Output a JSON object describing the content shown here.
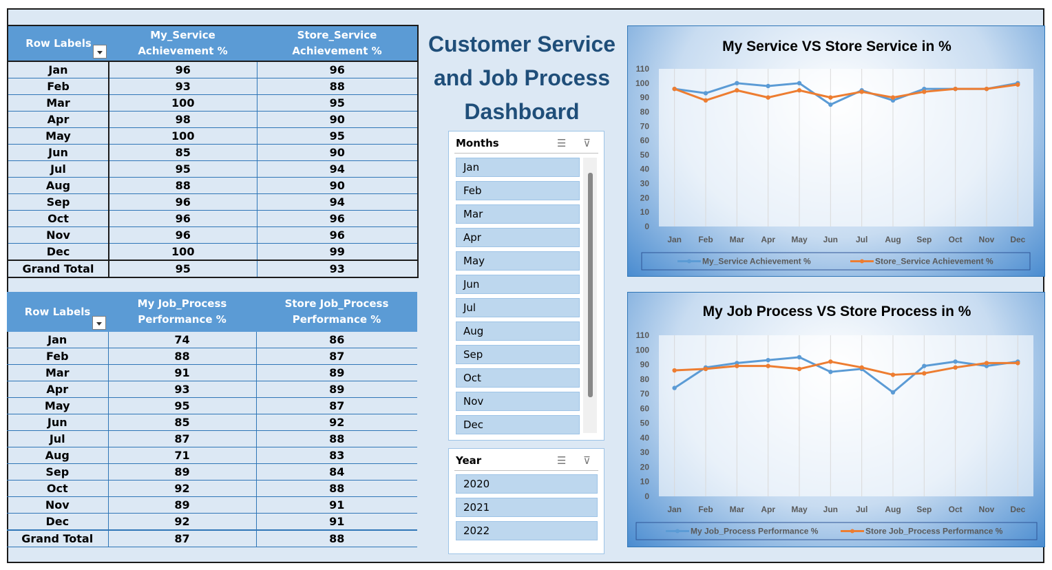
{
  "dashboard": {
    "title_lines": [
      "Customer Service",
      "and Job Process",
      "Dashboard"
    ]
  },
  "pivot_service": {
    "headers": [
      "Row Labels",
      "My_Service Achievement %",
      "Store_Service Achievement %"
    ],
    "rows": [
      [
        "Jan",
        "96",
        "96"
      ],
      [
        "Feb",
        "93",
        "88"
      ],
      [
        "Mar",
        "100",
        "95"
      ],
      [
        "Apr",
        "98",
        "90"
      ],
      [
        "May",
        "100",
        "95"
      ],
      [
        "Jun",
        "85",
        "90"
      ],
      [
        "Jul",
        "95",
        "94"
      ],
      [
        "Aug",
        "88",
        "90"
      ],
      [
        "Sep",
        "96",
        "94"
      ],
      [
        "Oct",
        "96",
        "96"
      ],
      [
        "Nov",
        "96",
        "96"
      ],
      [
        "Dec",
        "100",
        "99"
      ]
    ],
    "total": [
      "Grand Total",
      "95",
      "93"
    ]
  },
  "pivot_job": {
    "headers": [
      "Row Labels",
      "My Job_Process Performance %",
      "Store Job_Process Performance %"
    ],
    "rows": [
      [
        "Jan",
        "74",
        "86"
      ],
      [
        "Feb",
        "88",
        "87"
      ],
      [
        "Mar",
        "91",
        "89"
      ],
      [
        "Apr",
        "93",
        "89"
      ],
      [
        "May",
        "95",
        "87"
      ],
      [
        "Jun",
        "85",
        "92"
      ],
      [
        "Jul",
        "87",
        "88"
      ],
      [
        "Aug",
        "71",
        "83"
      ],
      [
        "Sep",
        "89",
        "84"
      ],
      [
        "Oct",
        "92",
        "88"
      ],
      [
        "Nov",
        "89",
        "91"
      ],
      [
        "Dec",
        "92",
        "91"
      ]
    ],
    "total": [
      "Grand Total",
      "87",
      "88"
    ]
  },
  "slicer_months": {
    "title": "Months",
    "items": [
      "Jan",
      "Feb",
      "Mar",
      "Apr",
      "May",
      "Jun",
      "Jul",
      "Aug",
      "Sep",
      "Oct",
      "Nov",
      "Dec"
    ]
  },
  "slicer_year": {
    "title": "Year",
    "items": [
      "2020",
      "2021",
      "2022"
    ]
  },
  "icons": {
    "multiselect": "multi-select-icon",
    "clear_filter": "clear-filter-icon",
    "dropdown": "filter-dropdown-icon"
  },
  "colors": {
    "header_blue": "#5b9bd5",
    "title_navy": "#1f4e79",
    "my_series": "#5b9bd5",
    "store_series": "#ed7d31"
  },
  "chart_data": [
    {
      "type": "line",
      "title": "My Service VS Store Service in %",
      "categories": [
        "Jan",
        "Feb",
        "Mar",
        "Apr",
        "May",
        "Jun",
        "Jul",
        "Aug",
        "Sep",
        "Oct",
        "Nov",
        "Dec"
      ],
      "series": [
        {
          "name": "My_Service Achievement %",
          "color": "#5b9bd5",
          "values": [
            96,
            93,
            100,
            98,
            100,
            85,
            95,
            88,
            96,
            96,
            96,
            100
          ]
        },
        {
          "name": "Store_Service Achievement %",
          "color": "#ed7d31",
          "values": [
            96,
            88,
            95,
            90,
            95,
            90,
            94,
            90,
            94,
            96,
            96,
            99
          ]
        }
      ],
      "ylim": [
        0,
        110
      ],
      "yticks": [
        0,
        10,
        20,
        30,
        40,
        50,
        60,
        70,
        80,
        90,
        100,
        110
      ],
      "grid": "vertical",
      "legend": "bottom"
    },
    {
      "type": "line",
      "title": "My Job Process VS Store Process in %",
      "categories": [
        "Jan",
        "Feb",
        "Mar",
        "Apr",
        "May",
        "Jun",
        "Jul",
        "Aug",
        "Sep",
        "Oct",
        "Nov",
        "Dec"
      ],
      "series": [
        {
          "name": "My Job_Process Performance %",
          "color": "#5b9bd5",
          "values": [
            74,
            88,
            91,
            93,
            95,
            85,
            87,
            71,
            89,
            92,
            89,
            92
          ]
        },
        {
          "name": "Store Job_Process Performance %",
          "color": "#ed7d31",
          "values": [
            86,
            87,
            89,
            89,
            87,
            92,
            88,
            83,
            84,
            88,
            91,
            91
          ]
        }
      ],
      "ylim": [
        0,
        110
      ],
      "yticks": [
        0,
        10,
        20,
        30,
        40,
        50,
        60,
        70,
        80,
        90,
        100,
        110
      ],
      "grid": "vertical",
      "legend": "bottom"
    }
  ]
}
